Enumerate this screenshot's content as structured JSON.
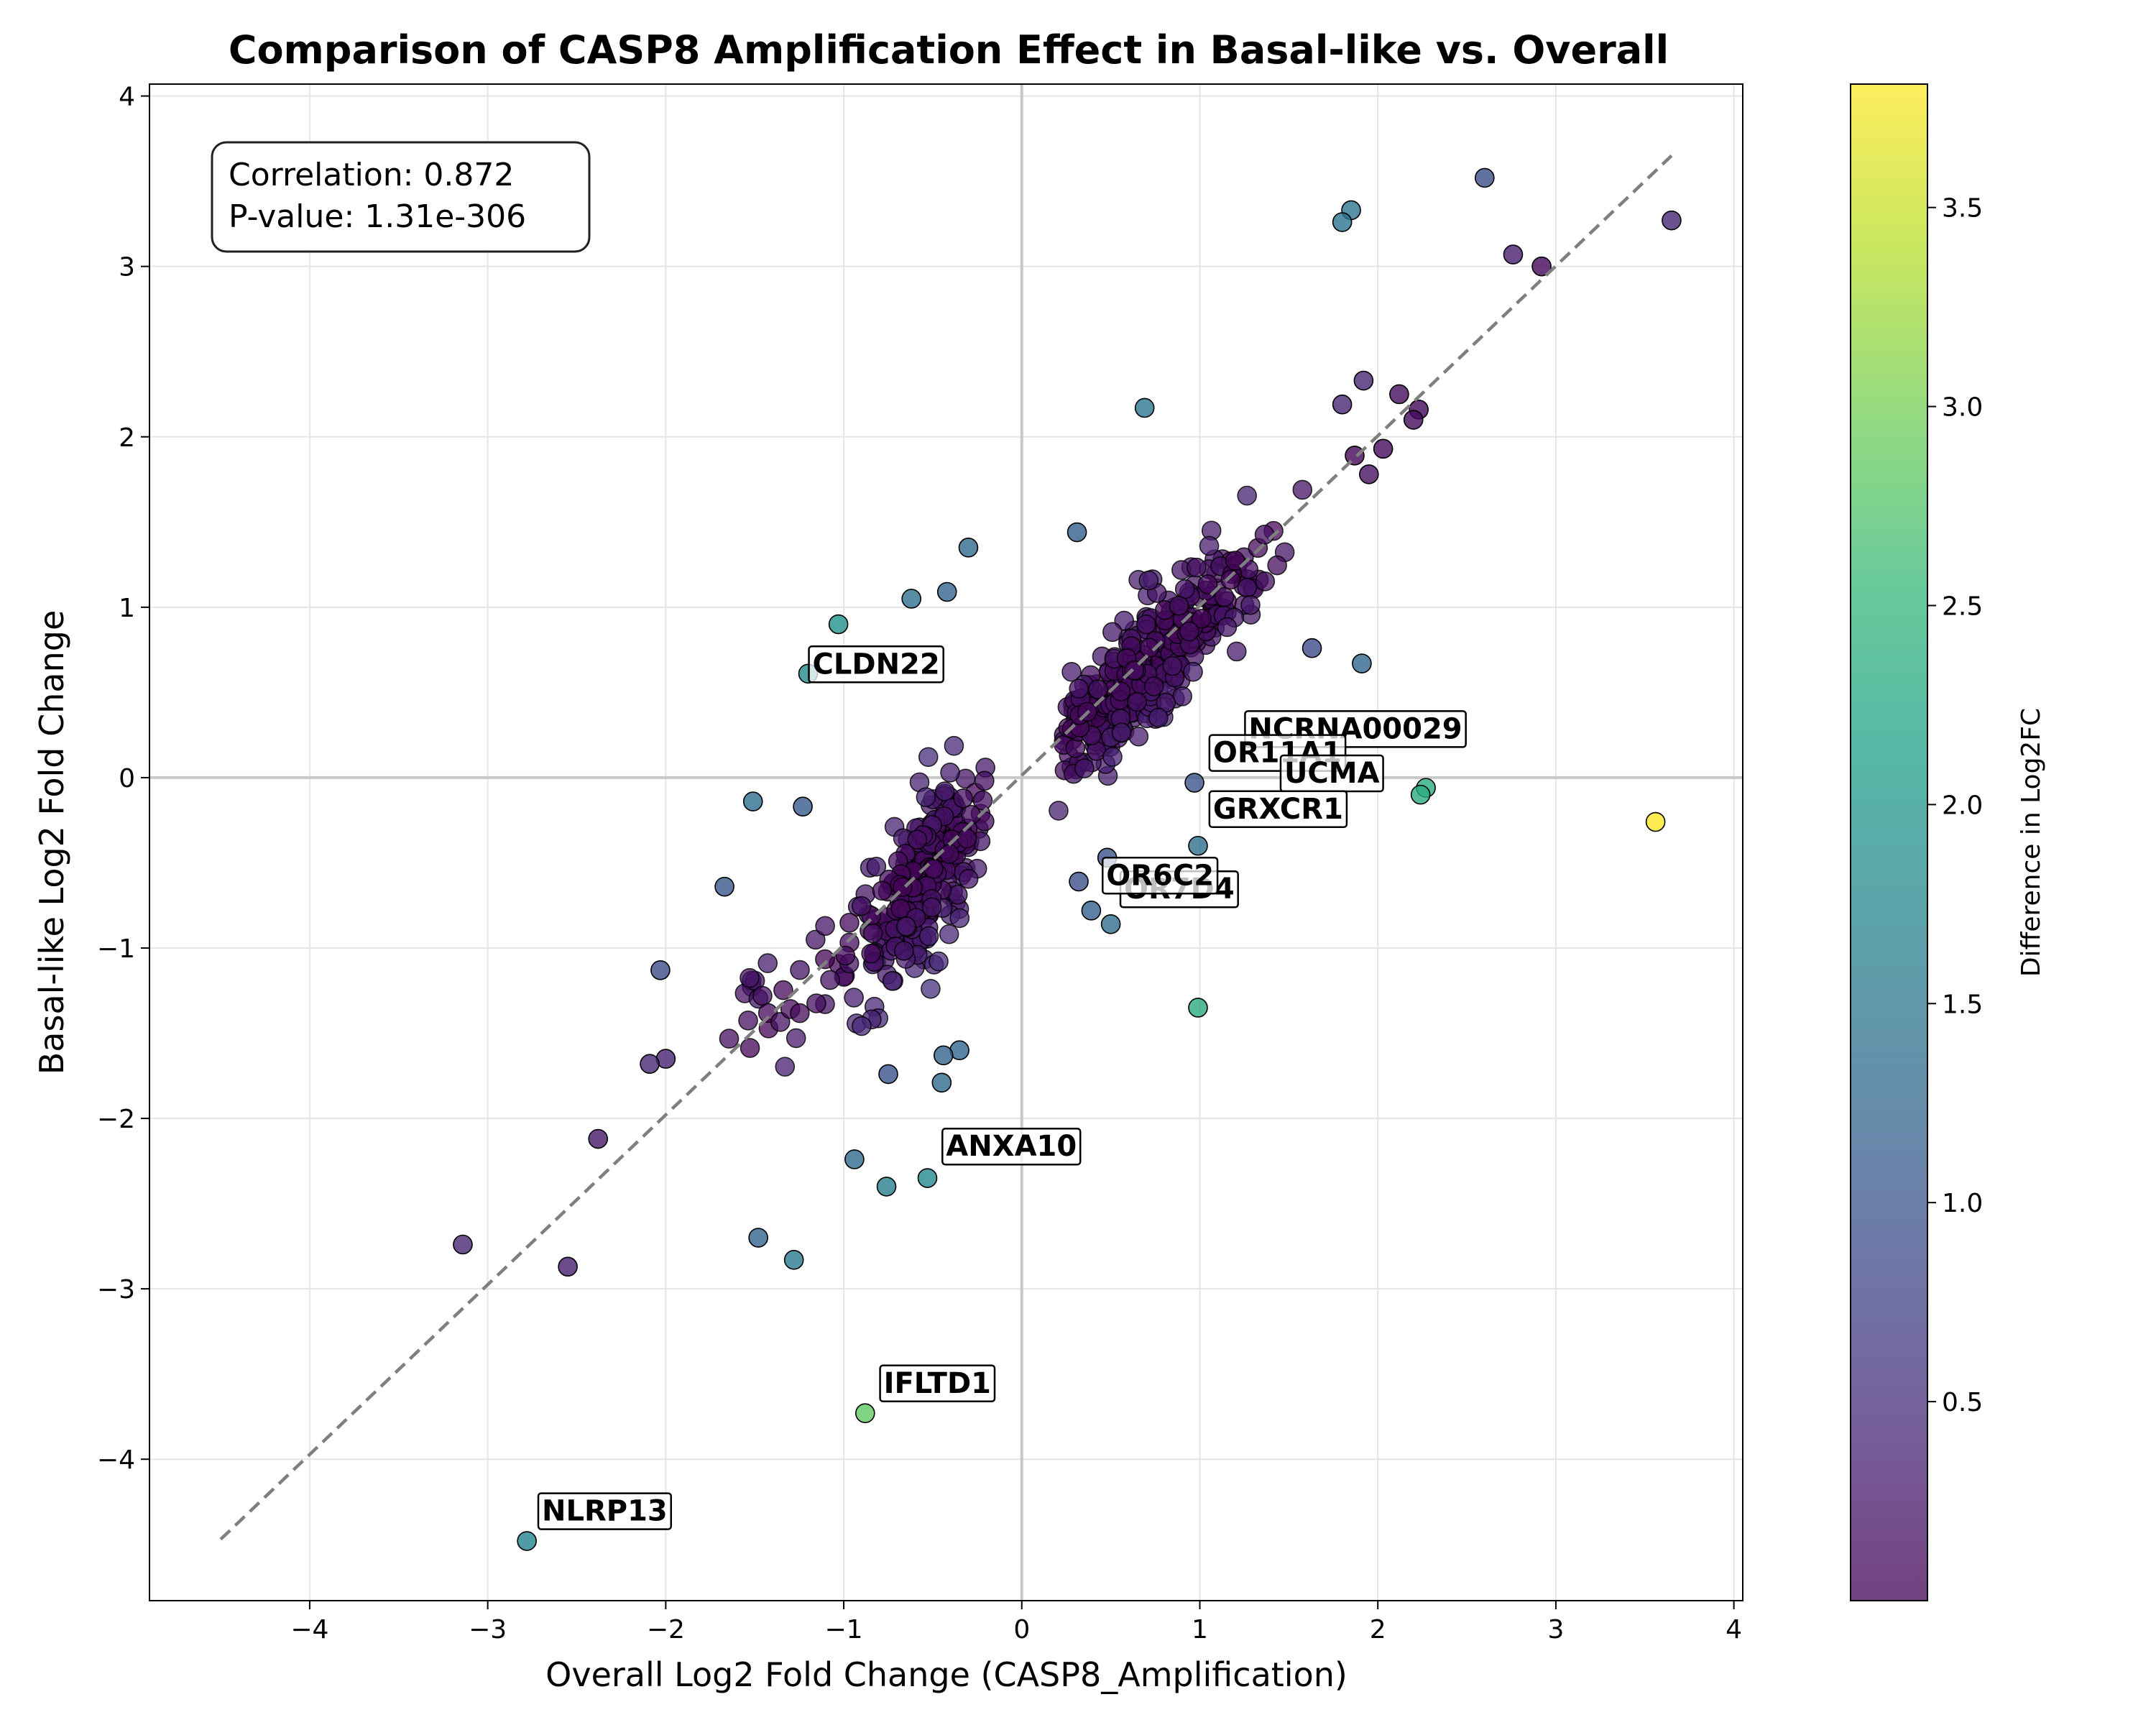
{
  "colors": {
    "viridis": [
      "#440154",
      "#482878",
      "#3e4989",
      "#31688e",
      "#26828e",
      "#1f9e89",
      "#35b779",
      "#6ece58",
      "#b5de2b",
      "#fde725"
    ]
  },
  "stats": {
    "correlation": "Correlation: 0.872",
    "pvalue": "P-value: 1.31e-306"
  },
  "chart_data": {
    "type": "scatter",
    "title": "Comparison of CASP8 Amplification Effect in Basal-like vs. Overall",
    "xlabel": "Overall Log2 Fold Change (CASP8_Amplification)",
    "ylabel": "Basal-like Log2 Fold Change",
    "xlim": [
      -4.9,
      4.05
    ],
    "ylim": [
      -4.83,
      4.07
    ],
    "xticks": [
      -4,
      -3,
      -2,
      -1,
      0,
      1,
      2,
      3,
      4
    ],
    "xtick_labels": [
      "−4",
      "−3",
      "−2",
      "−1",
      "0",
      "1",
      "2",
      "3",
      "4"
    ],
    "yticks": [
      -4,
      -3,
      -2,
      -1,
      0,
      1,
      2,
      3,
      4
    ],
    "ytick_labels": [
      "−4",
      "−3",
      "−2",
      "−1",
      "0",
      "1",
      "2",
      "3",
      "4"
    ],
    "grid": true,
    "reference_lines": {
      "x": 0,
      "y": 0
    },
    "fit_line": {
      "style": "dashed",
      "color": "#7f7f7f",
      "x": [
        -4.5,
        3.65
      ],
      "y": [
        -4.47,
        3.65
      ]
    },
    "colorbar": {
      "label": "Difference in Log2FC",
      "colormap": "viridis",
      "range": [
        0.0,
        3.81
      ],
      "ticks": [
        0.5,
        1.0,
        1.5,
        2.0,
        2.5,
        3.0,
        3.5
      ],
      "tick_labels": [
        "0.5",
        "1.0",
        "1.5",
        "2.0",
        "2.5",
        "3.0",
        "3.5"
      ]
    },
    "points": [
      {
        "x": 3.56,
        "y": -0.26,
        "c": 3.82
      },
      {
        "x": 2.27,
        "y": -0.06,
        "c": 2.33
      },
      {
        "x": 2.24,
        "y": -0.1,
        "c": 2.34
      },
      {
        "x": 0.99,
        "y": -1.35,
        "c": 2.34
      },
      {
        "x": -0.88,
        "y": -3.73,
        "c": 2.85
      },
      {
        "x": -1.03,
        "y": 0.9,
        "c": 1.93
      },
      {
        "x": -1.2,
        "y": 0.61,
        "c": 1.81
      },
      {
        "x": -2.78,
        "y": -4.48,
        "c": 1.7
      },
      {
        "x": -0.53,
        "y": -2.35,
        "c": 1.82
      },
      {
        "x": -0.76,
        "y": -2.4,
        "c": 1.64
      },
      {
        "x": -0.94,
        "y": -2.24,
        "c": 1.3
      },
      {
        "x": -1.28,
        "y": -2.83,
        "c": 1.55
      },
      {
        "x": -1.48,
        "y": -2.7,
        "c": 1.22
      },
      {
        "x": 1.85,
        "y": 3.33,
        "c": 1.48
      },
      {
        "x": 1.8,
        "y": 3.26,
        "c": 1.46
      },
      {
        "x": 2.6,
        "y": 3.52,
        "c": 0.92
      },
      {
        "x": 0.69,
        "y": 2.17,
        "c": 1.48
      },
      {
        "x": 1.91,
        "y": 0.67,
        "c": 1.24
      },
      {
        "x": 0.99,
        "y": -0.4,
        "c": 1.39
      },
      {
        "x": -0.3,
        "y": 1.35,
        "c": 1.3
      },
      {
        "x": -0.62,
        "y": 1.05,
        "c": 1.42
      },
      {
        "x": -0.42,
        "y": 1.09,
        "c": 1.2
      },
      {
        "x": -1.51,
        "y": -0.14,
        "c": 1.37
      },
      {
        "x": -1.23,
        "y": -0.17,
        "c": 1.06
      },
      {
        "x": -1.67,
        "y": -0.64,
        "c": 1.03
      },
      {
        "x": -2.03,
        "y": -1.13,
        "c": 0.9
      },
      {
        "x": -0.35,
        "y": -1.6,
        "c": 1.25
      },
      {
        "x": -0.44,
        "y": -1.63,
        "c": 1.2
      },
      {
        "x": -0.45,
        "y": -1.79,
        "c": 1.34
      },
      {
        "x": -0.75,
        "y": -1.74,
        "c": 0.99
      },
      {
        "x": 0.5,
        "y": -0.86,
        "c": 1.36
      },
      {
        "x": 0.39,
        "y": -0.78,
        "c": 1.17
      },
      {
        "x": 0.48,
        "y": -0.47,
        "c": 0.95
      },
      {
        "x": 0.32,
        "y": -0.61,
        "c": 0.93
      },
      {
        "x": 0.31,
        "y": 1.44,
        "c": 1.13
      },
      {
        "x": 0.97,
        "y": -0.03,
        "c": 1.0
      },
      {
        "x": 1.63,
        "y": 0.76,
        "c": 0.87
      },
      {
        "x": -2.0,
        "y": -1.65,
        "c": 0.35
      },
      {
        "x": -2.09,
        "y": -1.68,
        "c": 0.41
      },
      {
        "x": -3.14,
        "y": -2.74,
        "c": 0.4
      },
      {
        "x": -2.55,
        "y": -2.87,
        "c": 0.32
      },
      {
        "x": -2.38,
        "y": -2.12,
        "c": 0.26
      },
      {
        "x": 2.76,
        "y": 3.07,
        "c": 0.3
      },
      {
        "x": 2.92,
        "y": 3.0,
        "c": 0.08
      },
      {
        "x": 3.65,
        "y": 3.27,
        "c": 0.38
      },
      {
        "x": 2.12,
        "y": 2.25,
        "c": 0.13
      },
      {
        "x": 1.92,
        "y": 2.33,
        "c": 0.41
      },
      {
        "x": 2.23,
        "y": 2.16,
        "c": 0.07
      },
      {
        "x": 2.2,
        "y": 2.1,
        "c": 0.1
      },
      {
        "x": 1.8,
        "y": 2.19,
        "c": 0.39
      },
      {
        "x": 2.03,
        "y": 1.93,
        "c": 0.1
      },
      {
        "x": 1.95,
        "y": 1.78,
        "c": 0.17
      },
      {
        "x": 1.87,
        "y": 1.89,
        "c": 0.05
      }
    ],
    "annotations": [
      {
        "label": "CLDN22",
        "x": -1.2,
        "y": 0.61
      },
      {
        "label": "NCRNA00029",
        "x": 1.25,
        "y": 0.23
      },
      {
        "label": "OR11A1",
        "x": 1.05,
        "y": 0.09
      },
      {
        "label": "UCMA",
        "x": 1.45,
        "y": -0.03
      },
      {
        "label": "GRXCR1",
        "x": 1.05,
        "y": -0.24
      },
      {
        "label": "OR7D4",
        "x": 0.55,
        "y": -0.71
      },
      {
        "label": "OR6C2",
        "x": 0.45,
        "y": -0.63
      },
      {
        "label": "ANXA10",
        "x": -0.45,
        "y": -2.22
      },
      {
        "label": "IFLTD1",
        "x": -0.8,
        "y": -3.61
      },
      {
        "label": "NLRP13",
        "x": -2.72,
        "y": -4.36
      }
    ],
    "clusters": [
      {
        "cx": 0.72,
        "cy": 0.68,
        "sx": 0.45,
        "sy": 0.48,
        "n": 380,
        "spread_dir": [
          1,
          1.05
        ],
        "seed": 11
      },
      {
        "cx": -0.52,
        "cy": -0.57,
        "sx": 0.25,
        "sy": 0.35,
        "n": 260,
        "spread_dir": [
          1,
          1.6
        ],
        "seed": 23
      },
      {
        "cx": -1.1,
        "cy": -1.1,
        "sx": 0.33,
        "sy": 0.32,
        "n": 35,
        "spread_dir": [
          1,
          1.0
        ],
        "seed": 37
      }
    ]
  }
}
